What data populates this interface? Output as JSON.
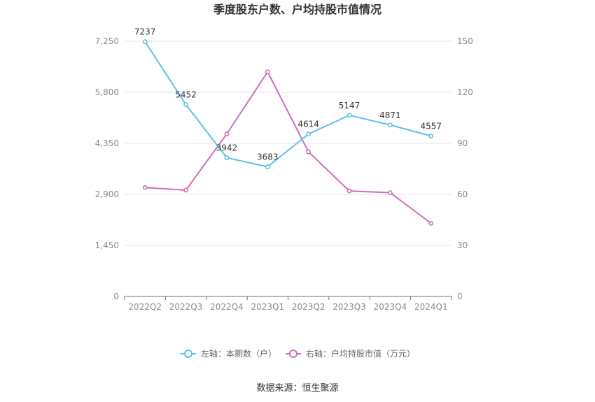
{
  "chart_data": {
    "type": "line",
    "title": "季度股东户数、户均持股市值情况",
    "categories": [
      "2022Q2",
      "2022Q3",
      "2022Q4",
      "2023Q1",
      "2023Q2",
      "2023Q3",
      "2023Q4",
      "2024Q1"
    ],
    "left_axis": {
      "ticks": [
        "0",
        "1,450",
        "2,900",
        "4,350",
        "5,800",
        "7,250"
      ],
      "ylim": [
        0,
        7250
      ]
    },
    "right_axis": {
      "ticks": [
        "0",
        "30",
        "60",
        "90",
        "120",
        "150"
      ],
      "ylim": [
        0,
        150
      ]
    },
    "series": [
      {
        "name": "左轴：本期数（户）",
        "axis": "left",
        "color": "#5bc0eb",
        "values": [
          7237,
          5452,
          3942,
          3683,
          4614,
          5147,
          4871,
          4557
        ],
        "labels": [
          "7237",
          "5452",
          "3942",
          "3683",
          "4614",
          "5147",
          "4871",
          "4557"
        ]
      },
      {
        "name": "右轴：户均持股市值（万元）",
        "axis": "right",
        "color": "#d36bb5",
        "values": [
          64,
          62.5,
          95.5,
          132,
          85,
          62,
          61,
          43
        ]
      }
    ],
    "grid": true,
    "legend_position": "bottom"
  },
  "source": "数据来源：恒生聚源"
}
